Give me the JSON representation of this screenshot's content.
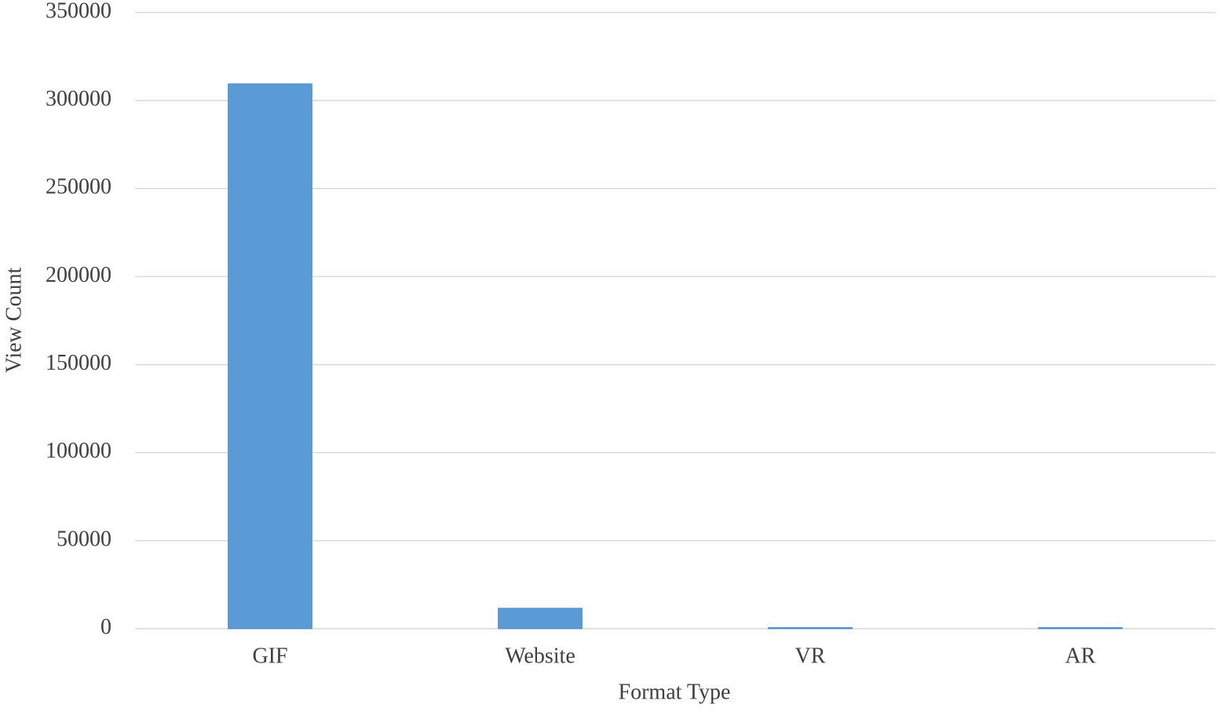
{
  "chart_data": {
    "type": "bar",
    "x_label": "Format Type",
    "y_label": "View Count",
    "categories": [
      "GIF",
      "Website",
      "VR",
      "AR"
    ],
    "values": [
      309500,
      11600,
      600,
      600
    ],
    "color": "#5b9bd5",
    "ylim": [
      0,
      350000
    ],
    "yticks": [
      0,
      50000,
      100000,
      150000,
      200000,
      250000,
      300000,
      350000
    ],
    "grid": true
  }
}
